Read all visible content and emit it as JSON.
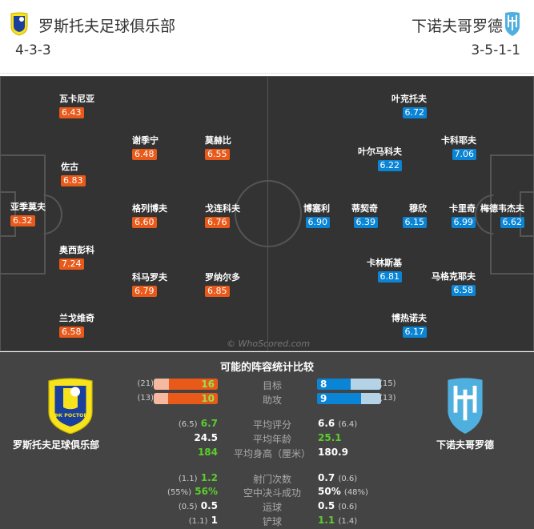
{
  "header": {
    "home_team": "罗斯托夫足球俱乐部",
    "away_team": "下诺夫哥罗德",
    "home_formation": "4-3-3",
    "away_formation": "3-5-1-1"
  },
  "home_players": [
    {
      "name": "亚季莫夫",
      "rating": "6.32"
    },
    {
      "name": "瓦卡尼亚",
      "rating": "6.43"
    },
    {
      "name": "佐古",
      "rating": "6.83"
    },
    {
      "name": "奥西彭科",
      "rating": "7.24"
    },
    {
      "name": "兰戈维奇",
      "rating": "6.58"
    },
    {
      "name": "谢季宁",
      "rating": "6.48"
    },
    {
      "name": "格列博夫",
      "rating": "6.60"
    },
    {
      "name": "科马罗夫",
      "rating": "6.79"
    },
    {
      "name": "莫赫比",
      "rating": "6.55"
    },
    {
      "name": "戈连科夫",
      "rating": "6.76"
    },
    {
      "name": "罗纳尔多",
      "rating": "6.85"
    }
  ],
  "away_players": [
    {
      "name": "叶克托夫",
      "rating": "6.72"
    },
    {
      "name": "卡科耶夫",
      "rating": "7.06"
    },
    {
      "name": "叶尔马科夫",
      "rating": "6.22"
    },
    {
      "name": "博塞利",
      "rating": "6.90"
    },
    {
      "name": "蒂契奇",
      "rating": "6.39"
    },
    {
      "name": "穆欣",
      "rating": "6.15"
    },
    {
      "name": "卡里奇",
      "rating": "6.99"
    },
    {
      "name": "梅德韦杰夫",
      "rating": "6.62"
    },
    {
      "name": "卡林斯基",
      "rating": "6.81"
    },
    {
      "name": "马格克耶夫",
      "rating": "6.58"
    },
    {
      "name": "博热诺夫",
      "rating": "6.17"
    }
  ],
  "watermark": "© WhoScored.com",
  "stats": {
    "title": "可能的阵容统计比较",
    "home_team": "罗斯托夫足球俱乐部",
    "away_team": "下诺夫哥罗德",
    "home_crest_text": "ФК РОСТОВ",
    "bars": [
      {
        "label": "目标",
        "home": "16",
        "home_prev": "(21)",
        "away": "8",
        "away_prev": "(15)",
        "home_frac": 0.76,
        "away_frac": 0.53
      },
      {
        "label": "助攻",
        "home": "10",
        "home_prev": "(13)",
        "away": "9",
        "away_prev": "(13)",
        "home_frac": 0.77,
        "away_frac": 0.69
      }
    ],
    "rows": [
      {
        "label": "平均评分",
        "home": "6.7",
        "home_prev": "(6.5)",
        "away": "6.6",
        "away_prev": "(6.4)",
        "better": "home"
      },
      {
        "label": "平均年龄",
        "home": "24.5",
        "home_prev": "",
        "away": "25.1",
        "away_prev": "",
        "better": "away"
      },
      {
        "label": "平均身高（厘米）",
        "home": "184",
        "home_prev": "",
        "away": "180.9",
        "away_prev": "",
        "better": "home"
      },
      {
        "label": "射门次数",
        "home": "1.2",
        "home_prev": "(1.1)",
        "away": "0.7",
        "away_prev": "(0.6)",
        "better": "home"
      },
      {
        "label": "空中决斗成功",
        "home": "56%",
        "home_prev": "(55%)",
        "away": "50%",
        "away_prev": "(48%)",
        "better": "home"
      },
      {
        "label": "运球",
        "home": "0.5",
        "home_prev": "(0.5)",
        "away": "0.5",
        "away_prev": "(0.6)",
        "better": ""
      },
      {
        "label": "铲球",
        "home": "1",
        "home_prev": "(1.1)",
        "away": "1.1",
        "away_prev": "(1.4)",
        "better": "away"
      }
    ]
  },
  "colors": {
    "home": "#e8591a",
    "away": "#0a84d4",
    "better": "#5dcc2e"
  }
}
